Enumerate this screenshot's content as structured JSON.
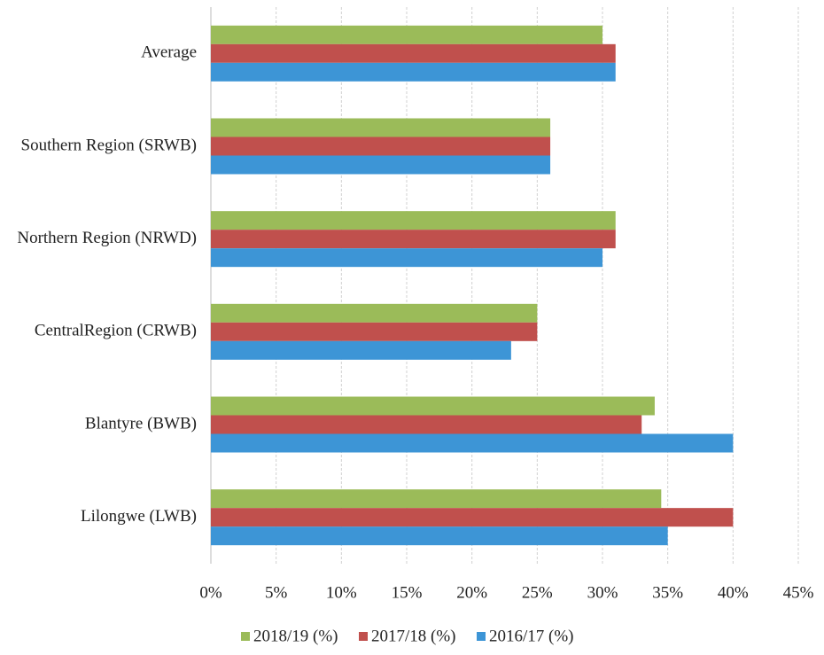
{
  "chart_data": {
    "type": "hbar",
    "categories": [
      "Average",
      "Southern Region (SRWB)",
      "Northern Region (NRWD)",
      "CentralRegion (CRWB)",
      "Blantyre (BWB)",
      "Lilongwe (LWB)"
    ],
    "series": [
      {
        "name": "2018/19 (%)",
        "color": "#9bbb59",
        "values": [
          30,
          26,
          31,
          25,
          34,
          34.5
        ]
      },
      {
        "name": "2017/18 (%)",
        "color": "#c0504d",
        "values": [
          31,
          26,
          31,
          25,
          33,
          40
        ]
      },
      {
        "name": "2016/17 (%)",
        "color": "#3d95d6",
        "values": [
          31,
          26,
          30,
          23,
          40,
          35
        ]
      }
    ],
    "xlim": [
      0,
      45
    ],
    "xticks": [
      {
        "value": 0,
        "label": "0%"
      },
      {
        "value": 5,
        "label": "5%"
      },
      {
        "value": 10,
        "label": "10%"
      },
      {
        "value": 15,
        "label": "15%"
      },
      {
        "value": 20,
        "label": "20%"
      },
      {
        "value": 25,
        "label": "25%"
      },
      {
        "value": 30,
        "label": "30%"
      },
      {
        "value": 35,
        "label": "35%"
      },
      {
        "value": 40,
        "label": "40%"
      },
      {
        "value": 45,
        "label": "45%"
      }
    ],
    "grid": true,
    "legend": "bottom"
  }
}
